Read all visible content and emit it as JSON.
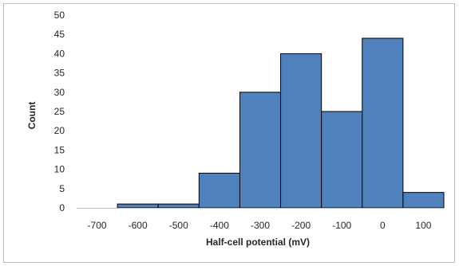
{
  "chart_data": {
    "type": "bar",
    "subtype": "histogram",
    "title": "",
    "xlabel": "Half-cell potential (mV)",
    "ylabel": "Count",
    "bin_centers": [
      -600,
      -500,
      -400,
      -300,
      -200,
      -100,
      0,
      100
    ],
    "bin_width": 100,
    "values": [
      1,
      1,
      9,
      30,
      40,
      25,
      44,
      4
    ],
    "xlim": [
      -750,
      150
    ],
    "ylim": [
      0,
      50
    ],
    "x_ticks": [
      -700,
      -600,
      -500,
      -400,
      -300,
      -200,
      -100,
      0,
      100
    ],
    "y_ticks": [
      0,
      5,
      10,
      15,
      20,
      25,
      30,
      35,
      40,
      45,
      50
    ],
    "grid": false,
    "legend": "none",
    "bar_color": "#4f81bd",
    "bar_edge_color": "#000000"
  }
}
